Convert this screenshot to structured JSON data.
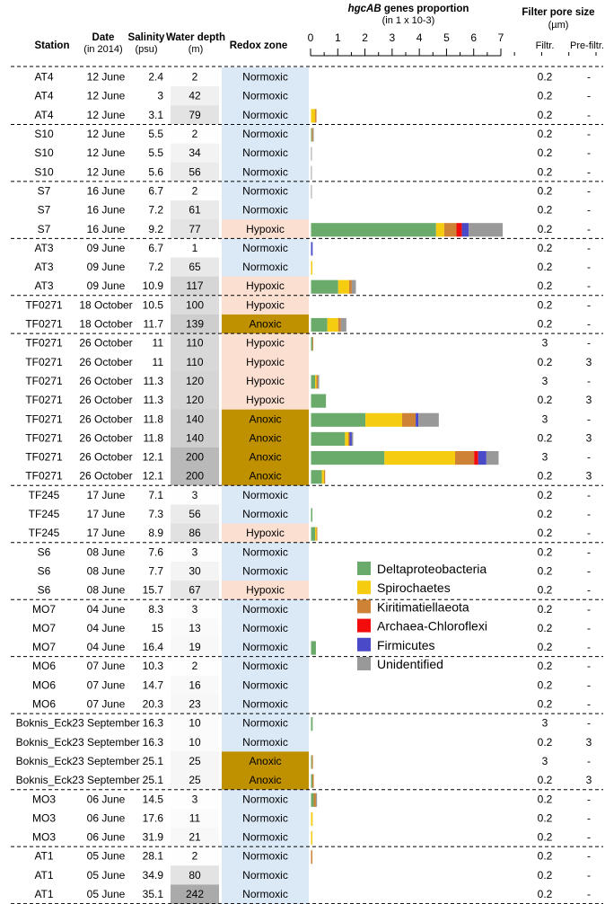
{
  "headers": {
    "station": "Station",
    "date": "Date",
    "date_sub": "(in 2014)",
    "salinity": "Salinity",
    "salinity_sub": "(psu)",
    "depth": "Water depth",
    "depth_sub": "(m)",
    "redox": "Redox zone",
    "genes_italic": "hgcAB",
    "genes_rest": " genes proportion",
    "genes_sub": "(in 1 x 10-3)",
    "filter": "Filter pore size",
    "filter_sub": "(µm)",
    "filtr": "Filtr.",
    "prefiltr": "Pre-filtr."
  },
  "colors": {
    "Deltaproteobacteria": "#6aaa6a",
    "Spirochaetes": "#f5cc10",
    "Kiritimatiellaeota": "#cd8235",
    "Archaea-Chloroflexi": "#f20c0c",
    "Firmicutes": "#4a4ac8",
    "Unidentified": "#999999",
    "normoxic": "#dbe8f6",
    "hypoxic": "#fbe0d2",
    "anoxic": "#bf9000"
  },
  "chart_data": {
    "type": "bar",
    "orientation": "horizontal",
    "stacked": true,
    "title": "hgcAB genes proportion (in 1 x 10-3)",
    "xlim": [
      0,
      7
    ],
    "xticks": [
      "0",
      "1",
      "2",
      "3",
      "4",
      "5",
      "6",
      "7"
    ],
    "legend_position": "middle-right",
    "series_names": [
      "Deltaproteobacteria",
      "Spirochaetes",
      "Kiritimatiellaeota",
      "Archaea-Chloroflexi",
      "Firmicutes",
      "Unidentified"
    ],
    "rows": [
      {
        "station": "AT4",
        "date": "12 June",
        "salinity": "2.4",
        "depth": "2",
        "depth_value": 2,
        "redox": "Normoxic",
        "redox_key": "normoxic",
        "filtr": "0.2",
        "prefiltr": "-",
        "values": [
          0,
          0,
          0,
          0,
          0,
          0
        ]
      },
      {
        "station": "AT4",
        "date": "12 June",
        "salinity": "3",
        "depth": "42",
        "depth_value": 42,
        "redox": "Normoxic",
        "redox_key": "normoxic",
        "filtr": "0.2",
        "prefiltr": "-",
        "values": [
          0,
          0,
          0,
          0,
          0,
          0
        ]
      },
      {
        "station": "AT4",
        "date": "12 June",
        "salinity": "3.1",
        "depth": "79",
        "depth_value": 79,
        "redox": "Normoxic",
        "redox_key": "normoxic",
        "filtr": "0.2",
        "prefiltr": "-",
        "values": [
          0,
          0.15,
          0.05,
          0,
          0,
          0
        ]
      },
      {
        "station": "S10",
        "date": "12 June",
        "salinity": "5.5",
        "depth": "2",
        "depth_value": 2,
        "redox": "Normoxic",
        "redox_key": "normoxic",
        "filtr": "0.2",
        "prefiltr": "-",
        "values": [
          0.03,
          0,
          0.04,
          0,
          0,
          0.03
        ]
      },
      {
        "station": "S10",
        "date": "12 June",
        "salinity": "5.5",
        "depth": "34",
        "depth_value": 34,
        "redox": "Normoxic",
        "redox_key": "normoxic",
        "filtr": "0.2",
        "prefiltr": "-",
        "values": [
          0,
          0,
          0,
          0,
          0,
          0.03
        ]
      },
      {
        "station": "S10",
        "date": "12 June",
        "salinity": "5.6",
        "depth": "56",
        "depth_value": 56,
        "redox": "Normoxic",
        "redox_key": "normoxic",
        "filtr": "0.2",
        "prefiltr": "-",
        "values": [
          0,
          0,
          0,
          0,
          0,
          0.03
        ]
      },
      {
        "station": "S7",
        "date": "16 June",
        "salinity": "6.7",
        "depth": "2",
        "depth_value": 2,
        "redox": "Normoxic",
        "redox_key": "normoxic",
        "filtr": "0.2",
        "prefiltr": "-",
        "values": [
          0,
          0,
          0,
          0,
          0,
          0.03
        ]
      },
      {
        "station": "S7",
        "date": "16 June",
        "salinity": "7.2",
        "depth": "61",
        "depth_value": 61,
        "redox": "Normoxic",
        "redox_key": "normoxic",
        "filtr": "0.2",
        "prefiltr": "-",
        "values": [
          0,
          0,
          0,
          0,
          0,
          0
        ]
      },
      {
        "station": "S7",
        "date": "16 June",
        "salinity": "9.2",
        "depth": "77",
        "depth_value": 77,
        "redox": "Hypoxic",
        "redox_key": "hypoxic",
        "filtr": "0.2",
        "prefiltr": "-",
        "values": [
          4.6,
          0.3,
          0.45,
          0.2,
          0.25,
          1.25
        ]
      },
      {
        "station": "AT3",
        "date": "09 June",
        "salinity": "6.7",
        "depth": "1",
        "depth_value": 1,
        "redox": "Normoxic",
        "redox_key": "normoxic",
        "filtr": "0.2",
        "prefiltr": "-",
        "values": [
          0,
          0,
          0,
          0,
          0.06,
          0
        ]
      },
      {
        "station": "AT3",
        "date": "09 June",
        "salinity": "7.2",
        "depth": "65",
        "depth_value": 65,
        "redox": "Normoxic",
        "redox_key": "normoxic",
        "filtr": "0.2",
        "prefiltr": "-",
        "values": [
          0,
          0.05,
          0,
          0,
          0,
          0
        ]
      },
      {
        "station": "AT3",
        "date": "09 June",
        "salinity": "10.9",
        "depth": "117",
        "depth_value": 117,
        "redox": "Hypoxic",
        "redox_key": "hypoxic",
        "filtr": "0.2",
        "prefiltr": "-",
        "values": [
          1.0,
          0.4,
          0.1,
          0,
          0,
          0.15
        ]
      },
      {
        "station": "TF0271",
        "date": "18 October",
        "salinity": "10.5",
        "depth": "100",
        "depth_value": 100,
        "redox": "Hypoxic",
        "redox_key": "hypoxic",
        "filtr": "0.2",
        "prefiltr": "-",
        "values": [
          0,
          0,
          0,
          0,
          0,
          0
        ]
      },
      {
        "station": "TF0271",
        "date": "18 October",
        "salinity": "11.7",
        "depth": "139",
        "depth_value": 139,
        "redox": "Anoxic",
        "redox_key": "anoxic",
        "filtr": "0.2",
        "prefiltr": "-",
        "values": [
          0.6,
          0.4,
          0.1,
          0,
          0,
          0.2
        ]
      },
      {
        "station": "TF0271",
        "date": "26 October",
        "salinity": "11",
        "depth": "110",
        "depth_value": 110,
        "redox": "Hypoxic",
        "redox_key": "hypoxic",
        "filtr": "3",
        "prefiltr": "-",
        "values": [
          0.05,
          0,
          0.03,
          0,
          0,
          0
        ]
      },
      {
        "station": "TF0271",
        "date": "26 October",
        "salinity": "11",
        "depth": "110",
        "depth_value": 110,
        "redox": "Hypoxic",
        "redox_key": "hypoxic",
        "filtr": "0.2",
        "prefiltr": "3",
        "values": [
          0,
          0,
          0,
          0,
          0,
          0
        ]
      },
      {
        "station": "TF0271",
        "date": "26 October",
        "salinity": "11.3",
        "depth": "120",
        "depth_value": 120,
        "redox": "Hypoxic",
        "redox_key": "hypoxic",
        "filtr": "3",
        "prefiltr": "-",
        "values": [
          0.15,
          0.05,
          0.05,
          0,
          0,
          0.05
        ]
      },
      {
        "station": "TF0271",
        "date": "26 October",
        "salinity": "11.3",
        "depth": "120",
        "depth_value": 120,
        "redox": "Hypoxic",
        "redox_key": "hypoxic",
        "filtr": "0.2",
        "prefiltr": "3",
        "values": [
          0.55,
          0,
          0,
          0,
          0,
          0
        ]
      },
      {
        "station": "TF0271",
        "date": "26 October",
        "salinity": "11.8",
        "depth": "140",
        "depth_value": 140,
        "redox": "Anoxic",
        "redox_key": "anoxic",
        "filtr": "3",
        "prefiltr": "-",
        "values": [
          2.0,
          1.35,
          0.5,
          0,
          0.1,
          0.75
        ]
      },
      {
        "station": "TF0271",
        "date": "26 October",
        "salinity": "11.8",
        "depth": "140",
        "depth_value": 140,
        "redox": "Anoxic",
        "redox_key": "anoxic",
        "filtr": "0.2",
        "prefiltr": "3",
        "values": [
          1.25,
          0.12,
          0.05,
          0,
          0.08,
          0.05
        ]
      },
      {
        "station": "TF0271",
        "date": "26 October",
        "salinity": "12.1",
        "depth": "200",
        "depth_value": 200,
        "redox": "Anoxic",
        "redox_key": "anoxic",
        "filtr": "3",
        "prefiltr": "-",
        "values": [
          2.7,
          2.6,
          0.7,
          0.15,
          0.3,
          0.45
        ]
      },
      {
        "station": "TF0271",
        "date": "26 October",
        "salinity": "12.1",
        "depth": "200",
        "depth_value": 200,
        "redox": "Anoxic",
        "redox_key": "anoxic",
        "filtr": "0.2",
        "prefiltr": "3",
        "values": [
          0.4,
          0.08,
          0.04,
          0,
          0,
          0
        ]
      },
      {
        "station": "TF245",
        "date": "17 June",
        "salinity": "7.1",
        "depth": "3",
        "depth_value": 3,
        "redox": "Normoxic",
        "redox_key": "normoxic",
        "filtr": "0.2",
        "prefiltr": "-",
        "values": [
          0,
          0,
          0,
          0,
          0,
          0
        ]
      },
      {
        "station": "TF245",
        "date": "17 June",
        "salinity": "7.3",
        "depth": "56",
        "depth_value": 56,
        "redox": "Normoxic",
        "redox_key": "normoxic",
        "filtr": "0.2",
        "prefiltr": "-",
        "values": [
          0.05,
          0,
          0,
          0,
          0,
          0
        ]
      },
      {
        "station": "TF245",
        "date": "17 June",
        "salinity": "8.9",
        "depth": "86",
        "depth_value": 86,
        "redox": "Hypoxic",
        "redox_key": "hypoxic",
        "filtr": "0.2",
        "prefiltr": "-",
        "values": [
          0.15,
          0.05,
          0.03,
          0,
          0,
          0
        ]
      },
      {
        "station": "S6",
        "date": "08 June",
        "salinity": "7.6",
        "depth": "3",
        "depth_value": 3,
        "redox": "Normoxic",
        "redox_key": "normoxic",
        "filtr": "0.2",
        "prefiltr": "-",
        "values": [
          0,
          0,
          0,
          0,
          0,
          0
        ]
      },
      {
        "station": "S6",
        "date": "08 June",
        "salinity": "7.7",
        "depth": "30",
        "depth_value": 30,
        "redox": "Normoxic",
        "redox_key": "normoxic",
        "filtr": "0.2",
        "prefiltr": "-",
        "values": [
          0,
          0,
          0,
          0,
          0,
          0
        ]
      },
      {
        "station": "S6",
        "date": "08 June",
        "salinity": "15.7",
        "depth": "67",
        "depth_value": 67,
        "redox": "Hypoxic",
        "redox_key": "hypoxic",
        "filtr": "0.2",
        "prefiltr": "-",
        "values": [
          0,
          0,
          0,
          0,
          0,
          0
        ]
      },
      {
        "station": "MO7",
        "date": "04 June",
        "salinity": "8.3",
        "depth": "3",
        "depth_value": 3,
        "redox": "Normoxic",
        "redox_key": "normoxic",
        "filtr": "0.2",
        "prefiltr": "-",
        "values": [
          0,
          0,
          0,
          0,
          0,
          0
        ]
      },
      {
        "station": "MO7",
        "date": "04 June",
        "salinity": "15",
        "depth": "13",
        "depth_value": 13,
        "redox": "Normoxic",
        "redox_key": "normoxic",
        "filtr": "0.2",
        "prefiltr": "-",
        "values": [
          0,
          0,
          0,
          0,
          0,
          0
        ]
      },
      {
        "station": "MO7",
        "date": "04 June",
        "salinity": "16.4",
        "depth": "19",
        "depth_value": 19,
        "redox": "Normoxic",
        "redox_key": "normoxic",
        "filtr": "0.2",
        "prefiltr": "-",
        "values": [
          0.18,
          0,
          0,
          0,
          0,
          0
        ]
      },
      {
        "station": "MO6",
        "date": "07 June",
        "salinity": "10.3",
        "depth": "2",
        "depth_value": 2,
        "redox": "Normoxic",
        "redox_key": "normoxic",
        "filtr": "0.2",
        "prefiltr": "-",
        "values": [
          0,
          0,
          0,
          0,
          0,
          0
        ]
      },
      {
        "station": "MO6",
        "date": "07 June",
        "salinity": "14.7",
        "depth": "16",
        "depth_value": 16,
        "redox": "Normoxic",
        "redox_key": "normoxic",
        "filtr": "0.2",
        "prefiltr": "-",
        "values": [
          0,
          0,
          0,
          0,
          0,
          0
        ]
      },
      {
        "station": "MO6",
        "date": "07 June",
        "salinity": "20.3",
        "depth": "23",
        "depth_value": 23,
        "redox": "Normoxic",
        "redox_key": "normoxic",
        "filtr": "0.2",
        "prefiltr": "-",
        "values": [
          0,
          0,
          0,
          0,
          0,
          0
        ]
      },
      {
        "station": "Boknis_Eck",
        "date": "23 September",
        "salinity": "16.3",
        "depth": "10",
        "depth_value": 10,
        "redox": "Normoxic",
        "redox_key": "normoxic",
        "filtr": "3",
        "prefiltr": "-",
        "values": [
          0.06,
          0,
          0,
          0,
          0,
          0
        ]
      },
      {
        "station": "Boknis_Eck",
        "date": "23 September",
        "salinity": "16.3",
        "depth": "10",
        "depth_value": 10,
        "redox": "Normoxic",
        "redox_key": "normoxic",
        "filtr": "0.2",
        "prefiltr": "3",
        "values": [
          0,
          0,
          0,
          0,
          0,
          0
        ]
      },
      {
        "station": "Boknis_Eck",
        "date": "23 September",
        "salinity": "25.1",
        "depth": "25",
        "depth_value": 25,
        "redox": "Anoxic",
        "redox_key": "anoxic",
        "filtr": "3",
        "prefiltr": "-",
        "values": [
          0.03,
          0,
          0.04,
          0,
          0,
          0
        ]
      },
      {
        "station": "Boknis_Eck",
        "date": "23 September",
        "salinity": "25.1",
        "depth": "25",
        "depth_value": 25,
        "redox": "Anoxic",
        "redox_key": "anoxic",
        "filtr": "0.2",
        "prefiltr": "3",
        "values": [
          0.05,
          0,
          0.05,
          0,
          0,
          0
        ]
      },
      {
        "station": "MO3",
        "date": "06 June",
        "salinity": "14.5",
        "depth": "3",
        "depth_value": 3,
        "redox": "Normoxic",
        "redox_key": "normoxic",
        "filtr": "0.2",
        "prefiltr": "-",
        "values": [
          0.1,
          0,
          0.08,
          0,
          0,
          0.04
        ]
      },
      {
        "station": "MO3",
        "date": "06 June",
        "salinity": "17.6",
        "depth": "11",
        "depth_value": 11,
        "redox": "Normoxic",
        "redox_key": "normoxic",
        "filtr": "0.2",
        "prefiltr": "-",
        "values": [
          0,
          0.06,
          0,
          0,
          0,
          0
        ]
      },
      {
        "station": "MO3",
        "date": "06 June",
        "salinity": "31.9",
        "depth": "21",
        "depth_value": 21,
        "redox": "Normoxic",
        "redox_key": "normoxic",
        "filtr": "0.2",
        "prefiltr": "-",
        "values": [
          0,
          0.05,
          0,
          0,
          0,
          0
        ]
      },
      {
        "station": "AT1",
        "date": "05 June",
        "salinity": "28.1",
        "depth": "2",
        "depth_value": 2,
        "redox": "Normoxic",
        "redox_key": "normoxic",
        "filtr": "0.2",
        "prefiltr": "-",
        "values": [
          0,
          0,
          0.05,
          0,
          0,
          0
        ]
      },
      {
        "station": "AT1",
        "date": "05 June",
        "salinity": "34.9",
        "depth": "80",
        "depth_value": 80,
        "redox": "Normoxic",
        "redox_key": "normoxic",
        "filtr": "0.2",
        "prefiltr": "-",
        "values": [
          0,
          0,
          0,
          0,
          0,
          0
        ]
      },
      {
        "station": "AT1",
        "date": "05 June",
        "salinity": "35.1",
        "depth": "242",
        "depth_value": 242,
        "redox": "Normoxic",
        "redox_key": "normoxic",
        "filtr": "0.2",
        "prefiltr": "-",
        "values": [
          0,
          0,
          0,
          0,
          0,
          0
        ]
      }
    ],
    "group_sizes": [
      3,
      3,
      3,
      3,
      2,
      8,
      3,
      3,
      3,
      3,
      4,
      3,
      3
    ]
  }
}
